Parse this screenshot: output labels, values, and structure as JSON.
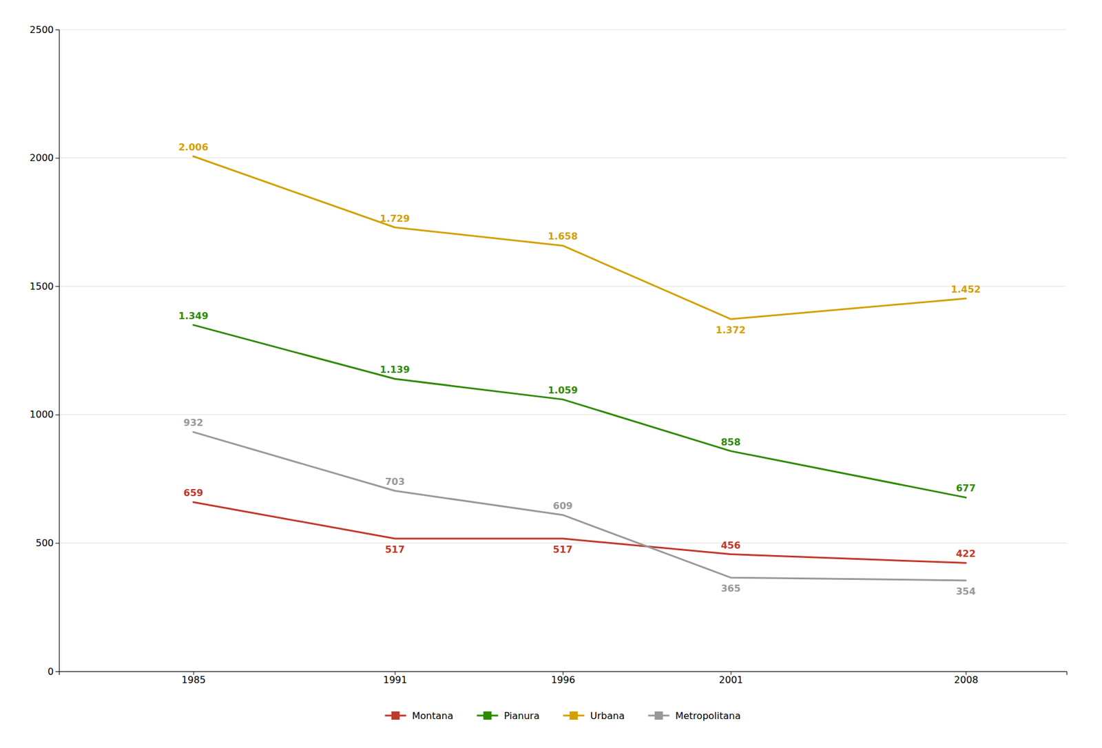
{
  "chart_data": {
    "type": "line",
    "x": [
      1985,
      1991,
      1996,
      2001,
      2008
    ],
    "series": [
      {
        "name": "Montana",
        "color": "#c0392b",
        "values": [
          659,
          517,
          517,
          456,
          422
        ]
      },
      {
        "name": "Pianura",
        "color": "#2e8b00",
        "values": [
          1349,
          1139,
          1059,
          858,
          677
        ],
        "value_labels": [
          "1.349",
          "1.139",
          "1.059",
          "858",
          "677"
        ]
      },
      {
        "name": "Urbana",
        "color": "#d4a000",
        "values": [
          2006,
          1729,
          1658,
          1372,
          1452
        ],
        "value_labels": [
          "2.006",
          "1.729",
          "1.658",
          "1.372",
          "1.452"
        ]
      },
      {
        "name": "Metropolitana",
        "color": "#999999",
        "values": [
          932,
          703,
          609,
          365,
          354
        ]
      }
    ],
    "xlim": [
      1981,
      2011
    ],
    "xticks": [
      1985,
      1991,
      1996,
      2001,
      2008
    ],
    "ylim": [
      0,
      2500
    ],
    "yticks": [
      0,
      500,
      1000,
      1500,
      2000,
      2500
    ],
    "grid": true,
    "data_labels": true,
    "legend": "bottom"
  }
}
